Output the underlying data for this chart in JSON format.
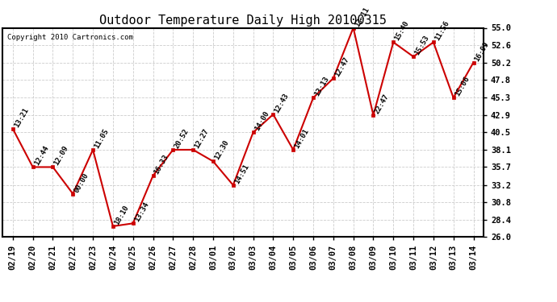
{
  "title": "Outdoor Temperature Daily High 20100315",
  "copyright": "Copyright 2010 Cartronics.com",
  "dates": [
    "02/19",
    "02/20",
    "02/21",
    "02/22",
    "02/23",
    "02/24",
    "02/25",
    "02/26",
    "02/27",
    "02/28",
    "03/01",
    "03/02",
    "03/03",
    "03/04",
    "03/05",
    "03/06",
    "03/07",
    "03/08",
    "03/09",
    "03/10",
    "03/11",
    "03/12",
    "03/13",
    "03/14"
  ],
  "values": [
    41.0,
    35.7,
    35.7,
    32.0,
    38.1,
    27.5,
    27.9,
    34.5,
    38.1,
    38.1,
    36.5,
    33.2,
    40.5,
    43.0,
    38.1,
    45.3,
    48.0,
    55.0,
    42.9,
    53.0,
    51.0,
    53.0,
    45.3,
    50.2
  ],
  "labels": [
    "13:21",
    "12:44",
    "12:09",
    "00:00",
    "11:05",
    "18:10",
    "13:34",
    "16:33",
    "20:52",
    "12:27",
    "12:30",
    "14:51",
    "14:00",
    "12:43",
    "14:01",
    "13:13",
    "12:47",
    "13:11",
    "22:47",
    "15:40",
    "15:53",
    "11:56",
    "15:06",
    "16:09"
  ],
  "ylim_min": 26.0,
  "ylim_max": 55.0,
  "yticks": [
    26.0,
    28.4,
    30.8,
    33.2,
    35.7,
    38.1,
    40.5,
    42.9,
    45.3,
    47.8,
    50.2,
    52.6,
    55.0
  ],
  "line_color": "#cc0000",
  "marker_color": "#cc0000",
  "background_color": "#ffffff",
  "grid_color": "#cccccc",
  "title_fontsize": 11,
  "label_fontsize": 6.5,
  "tick_fontsize": 7.5,
  "copyright_fontsize": 6.5
}
